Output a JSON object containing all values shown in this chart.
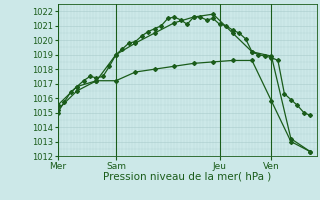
{
  "xlabel": "Pression niveau de la mer( hPa )",
  "bg_color": "#cce8e8",
  "grid_color": "#aacccc",
  "line_color": "#1a5c1a",
  "vline_color": "#1a5c1a",
  "ylim": [
    1012,
    1022.5
  ],
  "yticks": [
    1012,
    1013,
    1014,
    1015,
    1016,
    1017,
    1018,
    1019,
    1020,
    1021,
    1022
  ],
  "day_labels": [
    "Mer",
    "Sam",
    "Jeu",
    "Ven"
  ],
  "day_positions": [
    0,
    9,
    25,
    33
  ],
  "vline_positions": [
    0,
    9,
    25,
    33
  ],
  "xlim": [
    0,
    40
  ],
  "series1_x": [
    0,
    1,
    2,
    3,
    4,
    5,
    6,
    7,
    8,
    9,
    10,
    11,
    12,
    13,
    14,
    15,
    16,
    17,
    18,
    19,
    20,
    21,
    22,
    23,
    24,
    25,
    26,
    27,
    28,
    29,
    30,
    31,
    32,
    33,
    34,
    35,
    36,
    37,
    38,
    39
  ],
  "series1_y": [
    1015.0,
    1015.7,
    1016.4,
    1016.8,
    1017.2,
    1017.5,
    1017.4,
    1017.5,
    1018.2,
    1019.0,
    1019.4,
    1019.8,
    1019.9,
    1020.3,
    1020.6,
    1020.8,
    1021.0,
    1021.5,
    1021.6,
    1021.4,
    1021.1,
    1021.6,
    1021.6,
    1021.4,
    1021.5,
    1021.1,
    1021.0,
    1020.7,
    1020.5,
    1020.1,
    1019.2,
    1019.0,
    1018.9,
    1018.8,
    1018.6,
    1016.3,
    1015.9,
    1015.5,
    1015.0,
    1014.8
  ],
  "series2_x": [
    0,
    3,
    6,
    9,
    12,
    15,
    18,
    21,
    24,
    27,
    30,
    33,
    36,
    39
  ],
  "series2_y": [
    1015.2,
    1016.5,
    1017.2,
    1019.0,
    1019.8,
    1020.5,
    1021.2,
    1021.6,
    1021.8,
    1020.5,
    1019.2,
    1018.9,
    1013.2,
    1012.3
  ],
  "series3_x": [
    0,
    3,
    6,
    9,
    12,
    15,
    18,
    21,
    24,
    27,
    30,
    33,
    36,
    39
  ],
  "series3_y": [
    1015.5,
    1016.8,
    1017.2,
    1017.2,
    1017.8,
    1018.0,
    1018.2,
    1018.4,
    1018.5,
    1018.6,
    1018.6,
    1015.8,
    1013.0,
    1012.3
  ],
  "marker": "D",
  "marker_size": 2.0,
  "linewidth": 0.9,
  "xlabel_fontsize": 7.5,
  "tick_fontsize": 6.0,
  "day_label_fontsize": 6.5
}
